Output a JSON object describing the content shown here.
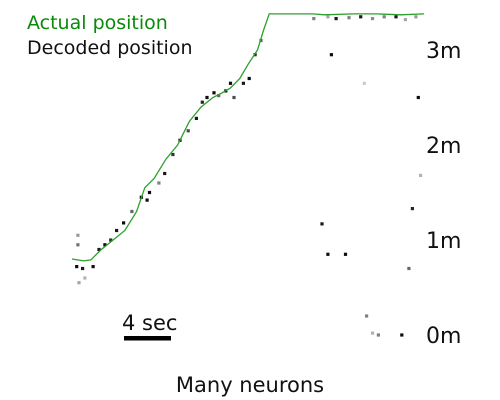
{
  "chart_data": {
    "type": "line",
    "caption": "Many neurons",
    "legend": {
      "actual_label": "Actual position",
      "decoded_label": "Decoded position",
      "placement": "top-left"
    },
    "y_unit": "m",
    "yticks": [
      {
        "value": 0,
        "label": "0m"
      },
      {
        "value": 1,
        "label": "1m"
      },
      {
        "value": 2,
        "label": "2m"
      },
      {
        "value": 3,
        "label": "3m"
      }
    ],
    "ylim": [
      0,
      3.4
    ],
    "xlim": [
      0,
      30.5
    ],
    "scale_bar": {
      "label": "4 sec",
      "seconds": 4
    },
    "colors": {
      "actual": "#2ca02c",
      "decoded": "#000000",
      "text_actual": "#0a8a0a"
    },
    "series": [
      {
        "name": "Actual position",
        "x": [
          0,
          1,
          1.6,
          2.5,
          3.5,
          4.5,
          5.5,
          6.2,
          7,
          8,
          9,
          10,
          11,
          12,
          12.8,
          13.5,
          14.3,
          15,
          15.8,
          16.3,
          16.8,
          19,
          20.5,
          21.5,
          24,
          26,
          28,
          30
        ],
        "y": [
          0.8,
          0.78,
          0.79,
          0.9,
          1.0,
          1.1,
          1.3,
          1.55,
          1.65,
          1.85,
          2.0,
          2.25,
          2.4,
          2.5,
          2.55,
          2.6,
          2.7,
          2.85,
          3.0,
          3.2,
          3.38,
          3.38,
          3.38,
          3.37,
          3.38,
          3.38,
          3.37,
          3.38
        ]
      }
    ],
    "decoded_points": [
      {
        "x": 0.4,
        "y": 0.72,
        "shade": 0.95
      },
      {
        "x": 0.5,
        "y": 1.05,
        "shade": 0.4
      },
      {
        "x": 0.5,
        "y": 0.95,
        "shade": 0.55
      },
      {
        "x": 0.6,
        "y": 0.55,
        "shade": 0.35
      },
      {
        "x": 0.9,
        "y": 0.7,
        "shade": 0.9
      },
      {
        "x": 1.1,
        "y": 0.6,
        "shade": 0.3
      },
      {
        "x": 1.8,
        "y": 0.72,
        "shade": 0.95
      },
      {
        "x": 2.3,
        "y": 0.9,
        "shade": 0.9
      },
      {
        "x": 2.8,
        "y": 0.95,
        "shade": 0.95
      },
      {
        "x": 3.3,
        "y": 1.0,
        "shade": 0.8
      },
      {
        "x": 3.8,
        "y": 1.1,
        "shade": 0.9
      },
      {
        "x": 4.4,
        "y": 1.18,
        "shade": 0.95
      },
      {
        "x": 5.1,
        "y": 1.3,
        "shade": 0.6
      },
      {
        "x": 5.9,
        "y": 1.45,
        "shade": 0.95
      },
      {
        "x": 6.4,
        "y": 1.42,
        "shade": 0.95
      },
      {
        "x": 6.6,
        "y": 1.5,
        "shade": 0.95
      },
      {
        "x": 7.4,
        "y": 1.6,
        "shade": 0.5
      },
      {
        "x": 7.9,
        "y": 1.7,
        "shade": 0.9
      },
      {
        "x": 8.6,
        "y": 1.9,
        "shade": 0.8
      },
      {
        "x": 9.2,
        "y": 2.05,
        "shade": 0.9
      },
      {
        "x": 9.9,
        "y": 2.15,
        "shade": 0.7
      },
      {
        "x": 10.6,
        "y": 2.28,
        "shade": 0.9
      },
      {
        "x": 11.1,
        "y": 2.45,
        "shade": 0.85
      },
      {
        "x": 11.5,
        "y": 2.5,
        "shade": 0.95
      },
      {
        "x": 12.1,
        "y": 2.55,
        "shade": 0.95
      },
      {
        "x": 12.5,
        "y": 2.52,
        "shade": 0.6
      },
      {
        "x": 13.1,
        "y": 2.57,
        "shade": 0.95
      },
      {
        "x": 13.5,
        "y": 2.65,
        "shade": 0.95
      },
      {
        "x": 13.8,
        "y": 2.5,
        "shade": 0.7
      },
      {
        "x": 14.6,
        "y": 2.65,
        "shade": 0.9
      },
      {
        "x": 15.1,
        "y": 2.7,
        "shade": 0.95
      },
      {
        "x": 15.6,
        "y": 2.95,
        "shade": 0.85
      },
      {
        "x": 16.1,
        "y": 3.1,
        "shade": 0.6
      },
      {
        "x": 20.6,
        "y": 3.33,
        "shade": 0.5
      },
      {
        "x": 21.8,
        "y": 3.35,
        "shade": 0.35
      },
      {
        "x": 22.5,
        "y": 3.33,
        "shade": 0.9
      },
      {
        "x": 23.6,
        "y": 3.34,
        "shade": 0.5
      },
      {
        "x": 24.6,
        "y": 3.35,
        "shade": 0.9
      },
      {
        "x": 25.6,
        "y": 3.33,
        "shade": 0.45
      },
      {
        "x": 26.6,
        "y": 3.35,
        "shade": 0.5
      },
      {
        "x": 27.6,
        "y": 3.35,
        "shade": 0.9
      },
      {
        "x": 28.4,
        "y": 3.32,
        "shade": 0.35
      },
      {
        "x": 29.3,
        "y": 3.35,
        "shade": 0.4
      },
      {
        "x": 22.1,
        "y": 2.95,
        "shade": 0.95
      },
      {
        "x": 29.5,
        "y": 2.5,
        "shade": 0.95
      },
      {
        "x": 29.7,
        "y": 1.68,
        "shade": 0.3
      },
      {
        "x": 29.0,
        "y": 1.33,
        "shade": 0.85
      },
      {
        "x": 21.3,
        "y": 1.17,
        "shade": 0.9
      },
      {
        "x": 21.8,
        "y": 0.85,
        "shade": 0.95
      },
      {
        "x": 23.3,
        "y": 0.85,
        "shade": 0.95
      },
      {
        "x": 28.7,
        "y": 0.7,
        "shade": 0.6
      },
      {
        "x": 25.1,
        "y": 0.2,
        "shade": 0.5
      },
      {
        "x": 26.1,
        "y": 0.0,
        "shade": 0.5
      },
      {
        "x": 28.1,
        "y": 0.0,
        "shade": 0.95
      },
      {
        "x": 25.6,
        "y": 0.02,
        "shade": 0.3
      },
      {
        "x": 24.9,
        "y": 2.65,
        "shade": 0.2
      }
    ]
  }
}
